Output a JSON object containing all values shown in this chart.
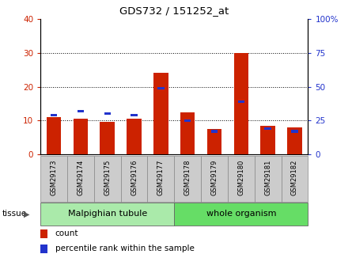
{
  "title": "GDS732 / 151252_at",
  "samples": [
    "GSM29173",
    "GSM29174",
    "GSM29175",
    "GSM29176",
    "GSM29177",
    "GSM29178",
    "GSM29179",
    "GSM29180",
    "GSM29181",
    "GSM29182"
  ],
  "counts": [
    11,
    10.5,
    9.5,
    10.5,
    24,
    12.5,
    7.5,
    30,
    8.5,
    8
  ],
  "percentile_ranks": [
    29,
    32,
    30,
    29,
    49,
    25,
    17,
    39,
    19,
    17
  ],
  "tissue_groups": [
    {
      "label": "Malpighian tubule",
      "start": 0,
      "end": 5,
      "color": "#aaeaaa"
    },
    {
      "label": "whole organism",
      "start": 5,
      "end": 10,
      "color": "#66dd66"
    }
  ],
  "ylim_left": [
    0,
    40
  ],
  "ylim_right": [
    0,
    100
  ],
  "yticks_left": [
    0,
    10,
    20,
    30,
    40
  ],
  "ytick_labels_left": [
    "0",
    "10",
    "20",
    "30",
    "40"
  ],
  "yticks_right": [
    0,
    25,
    50,
    75,
    100
  ],
  "ytick_labels_right": [
    "0",
    "25",
    "50",
    "75",
    "100%"
  ],
  "bar_color_count": "#cc2200",
  "bar_color_pct": "#2233cc",
  "bg_plot": "#ffffff",
  "bg_xtick": "#cccccc",
  "legend_label_count": "count",
  "legend_label_pct": "percentile rank within the sample",
  "tissue_label": "tissue"
}
